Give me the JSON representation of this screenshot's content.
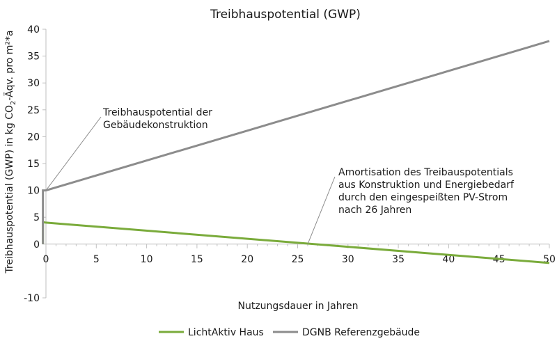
{
  "chart_data": {
    "type": "line",
    "title": "Treibhauspotential (GWP)",
    "xlabel": "Nutzungsdauer in Jahren",
    "ylabel_prefix": "Treibhauspotential (GWP) in kg CO",
    "ylabel_subscript": "2",
    "ylabel_suffix": "-Äqv. pro m²*a",
    "xlim": [
      0,
      50
    ],
    "ylim": [
      -10,
      40
    ],
    "x_ticks": [
      0,
      5,
      10,
      15,
      20,
      25,
      30,
      35,
      40,
      45,
      50
    ],
    "y_ticks": [
      -10,
      0,
      5,
      10,
      15,
      20,
      25,
      30,
      35,
      40
    ],
    "series": [
      {
        "name": "LichtAktiv Haus",
        "color": "#7aab3b",
        "points": [
          [
            -0.3,
            0
          ],
          [
            -0.3,
            4.1
          ],
          [
            0,
            4.0
          ],
          [
            50,
            -3.5
          ]
        ]
      },
      {
        "name": "DGNB Referenzgebäude",
        "color": "#8c8c8c",
        "points": [
          [
            -0.3,
            0
          ],
          [
            -0.3,
            10
          ],
          [
            0,
            10
          ],
          [
            50,
            37.8
          ]
        ]
      }
    ],
    "annotations": [
      {
        "lines": [
          "Treibhauspotential der",
          "Gebäudekonstruktion"
        ],
        "point": [
          0,
          10
        ]
      },
      {
        "lines": [
          "Amortisation des Treibauspotentials",
          "aus Konstruktion und Energiebedarf",
          "durch den eingespeißten PV-Strom",
          "nach 26 Jahren"
        ],
        "point": [
          26,
          0
        ]
      }
    ],
    "legend_position": "bottom",
    "grid": false
  }
}
